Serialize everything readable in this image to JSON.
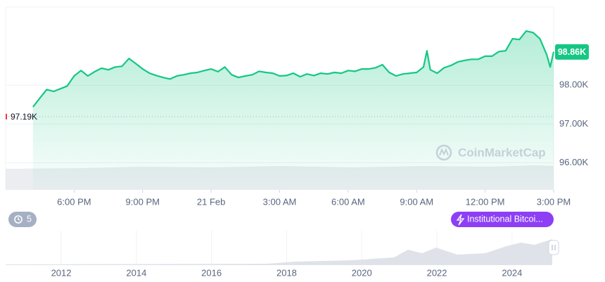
{
  "chart_data": {
    "type": "line",
    "color": "#16c784",
    "x": [
      16.2,
      16.5,
      16.8,
      17.1,
      17.4,
      17.7,
      18.0,
      18.3,
      18.6,
      18.9,
      19.2,
      19.5,
      19.8,
      20.1,
      20.4,
      20.7,
      21.0,
      21.3,
      21.6,
      21.9,
      22.2,
      22.5,
      22.8,
      23.1,
      23.4,
      23.7,
      24.0,
      24.3,
      24.6,
      24.9,
      25.2,
      25.5,
      25.8,
      26.1,
      26.4,
      26.7,
      27.0,
      27.3,
      27.6,
      27.9,
      28.2,
      28.5,
      28.8,
      29.1,
      29.4,
      29.7,
      30.0,
      30.3,
      30.6,
      30.9,
      31.2,
      31.5,
      31.8,
      32.1,
      32.4,
      32.7,
      33.0,
      33.3,
      33.45,
      33.6,
      33.9,
      34.2,
      34.5,
      34.8,
      35.1,
      35.4,
      35.7,
      36.0,
      36.3,
      36.6,
      36.9,
      37.2,
      37.5,
      37.8,
      38.1,
      38.4,
      38.7,
      38.85,
      39.0
    ],
    "values": [
      97.44,
      97.67,
      97.89,
      97.84,
      97.91,
      97.98,
      98.24,
      98.38,
      98.24,
      98.35,
      98.44,
      98.4,
      98.47,
      98.49,
      98.69,
      98.56,
      98.42,
      98.31,
      98.25,
      98.2,
      98.16,
      98.24,
      98.27,
      98.31,
      98.33,
      98.38,
      98.42,
      98.35,
      98.47,
      98.27,
      98.2,
      98.24,
      98.27,
      98.36,
      98.33,
      98.31,
      98.24,
      98.25,
      98.31,
      98.22,
      98.29,
      98.25,
      98.31,
      98.29,
      98.33,
      98.31,
      98.38,
      98.36,
      98.42,
      98.42,
      98.45,
      98.53,
      98.33,
      98.24,
      98.29,
      98.31,
      98.33,
      98.47,
      98.89,
      98.4,
      98.31,
      98.45,
      98.51,
      98.6,
      98.64,
      98.67,
      98.67,
      98.75,
      98.75,
      98.87,
      98.89,
      99.2,
      99.18,
      99.4,
      99.36,
      99.2,
      98.78,
      98.47,
      98.86
    ],
    "xlim": [
      15,
      39
    ],
    "xticks": [
      {
        "value": 18,
        "label": "6:00 PM"
      },
      {
        "value": 21,
        "label": "9:00 PM"
      },
      {
        "value": 24,
        "label": "21 Feb"
      },
      {
        "value": 27,
        "label": "3:00 AM"
      },
      {
        "value": 30,
        "label": "6:00 AM"
      },
      {
        "value": 33,
        "label": "9:00 AM"
      },
      {
        "value": 36,
        "label": "12:00 PM"
      },
      {
        "value": 39,
        "label": "3:00 PM"
      }
    ],
    "ylim": [
      95.3,
      100
    ],
    "yticks": [
      {
        "value": 96,
        "label": "96.00K"
      },
      {
        "value": 97,
        "label": "97.00K"
      },
      {
        "value": 98,
        "label": "98.00K"
      }
    ],
    "grid": true,
    "last_value": {
      "value": 98.86,
      "label": "98.86K"
    },
    "open_value": {
      "value": 97.19,
      "label": "97.19K"
    }
  },
  "navigator": {
    "xlim": [
      2010.52,
      2025.07
    ],
    "xticks": [
      2012,
      2014,
      2016,
      2018,
      2020,
      2022,
      2024
    ]
  },
  "watermark": "CoinMarketCap",
  "badge_count": "5",
  "event": "Institutional Bitcoi..."
}
